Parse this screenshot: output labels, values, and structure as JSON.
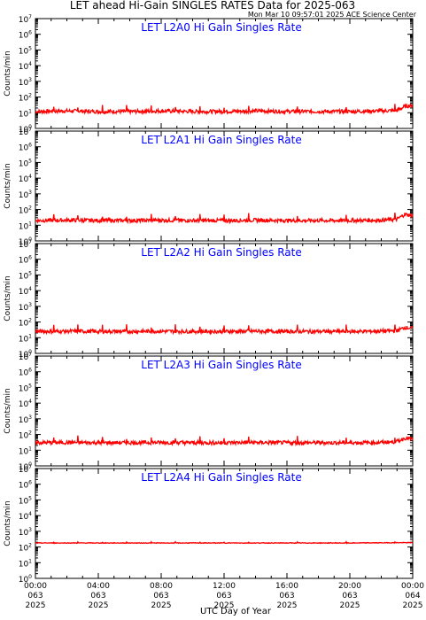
{
  "header": {
    "title": "LET ahead Hi-Gain SINGLES RATES Data for 2025-063",
    "timestamp": "Mon Mar 10 09:57:01 2025 ACE Science Center"
  },
  "colors": {
    "trace": "#ff0000",
    "panel_title": "#0000ff",
    "axes": "#000000",
    "background": "#ffffff"
  },
  "chart_data": [
    {
      "type": "line",
      "title": "LET L2A0 Hi Gain Singles Rate",
      "xlabel": "UTC Day of Year",
      "ylabel": "Counts/min",
      "yscale": "log",
      "ylim": [
        1,
        10000000
      ],
      "xlim": [
        0,
        24
      ],
      "y_tick_labels": [
        "10^0",
        "10^1",
        "10^2",
        "10^3",
        "10^4",
        "10^5",
        "10^6",
        "10^7"
      ],
      "grid": false,
      "series": [
        {
          "x": [
            0,
            2,
            4,
            6,
            8,
            10,
            12,
            14,
            16,
            18,
            20,
            22,
            23,
            23.5,
            24
          ],
          "y": [
            12,
            13,
            12,
            12,
            13,
            12,
            12,
            13,
            12,
            12,
            12,
            13,
            14,
            25,
            30
          ]
        }
      ]
    },
    {
      "type": "line",
      "title": "LET L2A1 Hi Gain Singles Rate",
      "xlabel": "UTC Day of Year",
      "ylabel": "Counts/min",
      "yscale": "log",
      "ylim": [
        1,
        10000000
      ],
      "xlim": [
        0,
        24
      ],
      "y_tick_labels": [
        "10^0",
        "10^1",
        "10^2",
        "10^3",
        "10^4",
        "10^5",
        "10^6",
        "10^7"
      ],
      "grid": false,
      "series": [
        {
          "x": [
            0,
            2,
            4,
            6,
            8,
            10,
            12,
            14,
            16,
            18,
            20,
            22,
            23,
            23.5,
            24
          ],
          "y": [
            20,
            21,
            20,
            20,
            21,
            20,
            20,
            21,
            20,
            20,
            20,
            21,
            24,
            50,
            40
          ]
        }
      ]
    },
    {
      "type": "line",
      "title": "LET L2A2 Hi Gain Singles Rate",
      "xlabel": "UTC Day of Year",
      "ylabel": "Counts/min",
      "yscale": "log",
      "ylim": [
        1,
        10000000
      ],
      "xlim": [
        0,
        24
      ],
      "y_tick_labels": [
        "10^0",
        "10^1",
        "10^2",
        "10^3",
        "10^4",
        "10^5",
        "10^6",
        "10^7"
      ],
      "grid": false,
      "series": [
        {
          "x": [
            0,
            2,
            4,
            6,
            8,
            10,
            12,
            14,
            16,
            18,
            20,
            22,
            23,
            23.5,
            24
          ],
          "y": [
            25,
            26,
            25,
            25,
            26,
            25,
            25,
            26,
            25,
            25,
            25,
            26,
            28,
            45,
            40
          ]
        }
      ]
    },
    {
      "type": "line",
      "title": "LET L2A3 Hi Gain Singles Rate",
      "xlabel": "UTC Day of Year",
      "ylabel": "Counts/min",
      "yscale": "log",
      "ylim": [
        1,
        10000000
      ],
      "xlim": [
        0,
        24
      ],
      "y_tick_labels": [
        "10^0",
        "10^1",
        "10^2",
        "10^3",
        "10^4",
        "10^5",
        "10^6",
        "10^7"
      ],
      "grid": false,
      "series": [
        {
          "x": [
            0,
            2,
            4,
            6,
            8,
            10,
            12,
            14,
            16,
            18,
            20,
            22,
            23,
            23.5,
            24
          ],
          "y": [
            30,
            31,
            30,
            30,
            31,
            30,
            30,
            31,
            30,
            30,
            30,
            31,
            35,
            60,
            50
          ]
        }
      ]
    },
    {
      "type": "line",
      "title": "LET L2A4 Hi Gain Singles Rate",
      "xlabel": "UTC Day of Year",
      "ylabel": "Counts/min",
      "yscale": "log",
      "ylim": [
        1,
        10000000
      ],
      "xlim": [
        0,
        24
      ],
      "y_tick_labels": [
        "10^0",
        "10^1",
        "10^2",
        "10^3",
        "10^4",
        "10^5",
        "10^6",
        "10^7"
      ],
      "x_tick_labels": [
        [
          "00:00",
          "063",
          "2025"
        ],
        [
          "04:00",
          "063",
          "2025"
        ],
        [
          "08:00",
          "063",
          "2025"
        ],
        [
          "12:00",
          "063",
          "2025"
        ],
        [
          "16:00",
          "063",
          "2025"
        ],
        [
          "20:00",
          "063",
          "2025"
        ],
        [
          "00:00",
          "064",
          "2025"
        ]
      ],
      "grid": false,
      "series": [
        {
          "x": [
            0,
            4,
            8,
            12,
            16,
            20,
            24
          ],
          "y": [
            180,
            180,
            180,
            180,
            180,
            180,
            190
          ]
        }
      ]
    }
  ]
}
